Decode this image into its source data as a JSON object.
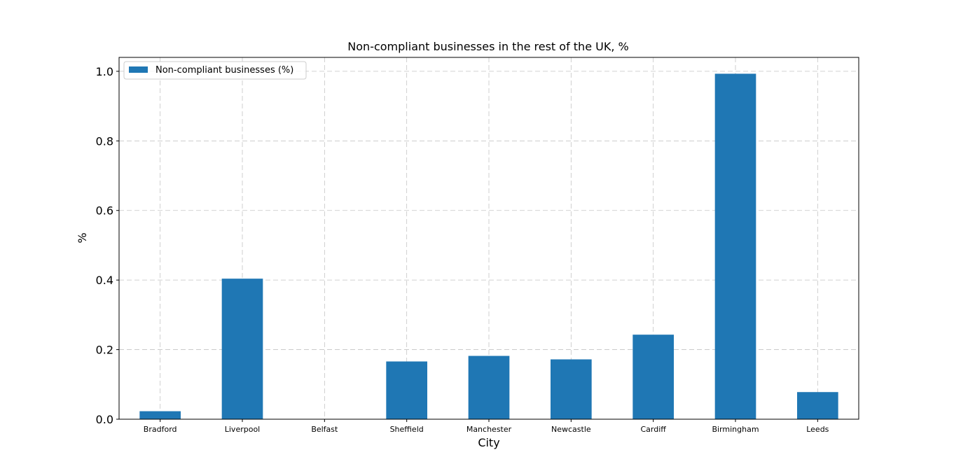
{
  "chart_data": {
    "type": "bar",
    "title": "Non-compliant businesses in the rest of the UK, %",
    "xlabel": "City",
    "ylabel": "%",
    "categories": [
      "Bradford",
      "Liverpool",
      "Belfast",
      "Sheffield",
      "Manchester",
      "Newcastle",
      "Cardiff",
      "Birmingham",
      "Leeds"
    ],
    "series": [
      {
        "name": "Non-compliant businesses (%)",
        "values": [
          0.023,
          0.404,
          0.0,
          0.166,
          0.182,
          0.172,
          0.243,
          0.993,
          0.078
        ],
        "color": "#1f77b4"
      }
    ],
    "ylim": [
      0,
      1.04
    ],
    "yticks": [
      "0.0",
      "0.2",
      "0.4",
      "0.6",
      "0.8",
      "1.0"
    ],
    "grid": true,
    "legend_position": "top-left"
  }
}
